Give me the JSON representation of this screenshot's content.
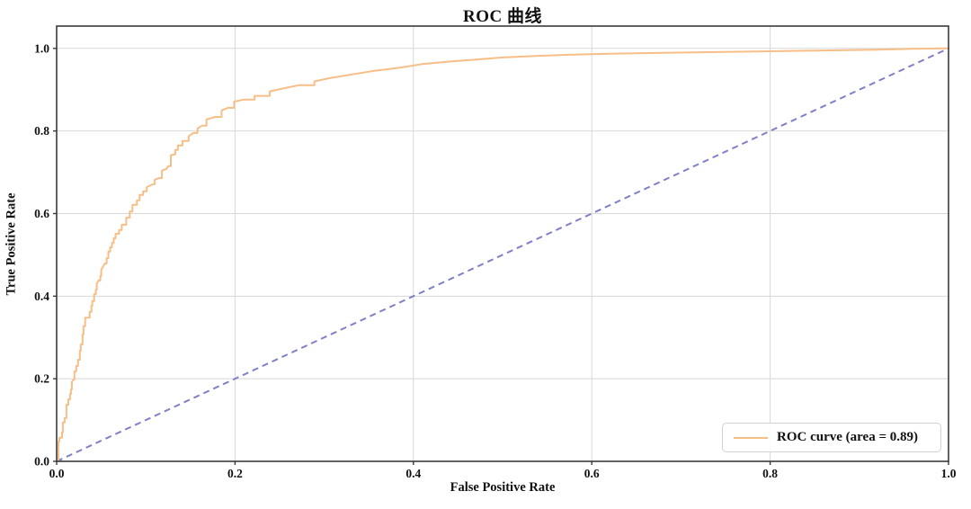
{
  "chart": {
    "title": "ROC 曲线",
    "xlabel": "False Positive Rate",
    "ylabel": "True Positive Rate",
    "legend": {
      "label": "ROC curve (area = 0.89)"
    }
  },
  "chart_data": {
    "type": "line",
    "title": "ROC 曲线",
    "xlabel": "False Positive Rate",
    "ylabel": "True Positive Rate",
    "xlim": [
      0,
      1.0
    ],
    "ylim": [
      0,
      1.054
    ],
    "x_ticks": [
      0,
      0.2,
      0.4,
      0.6,
      0.8,
      1.0
    ],
    "y_ticks": [
      0,
      0.2,
      0.4,
      0.6,
      0.8,
      1.0
    ],
    "x_tick_labels": [
      "0.0",
      "0.2",
      "0.4",
      "0.6",
      "0.8",
      "1.0"
    ],
    "y_tick_labels": [
      "0.0",
      "0.2",
      "0.4",
      "0.6",
      "0.8",
      "1.0"
    ],
    "grid": true,
    "legend_position": "lower right",
    "auc": 0.89,
    "colors": {
      "roc_curve": "#f7be87",
      "diagonal": "#7f80c8",
      "gridline": "#d8d8d8",
      "spine": "#3b3b3b",
      "text": "#111111",
      "background": "#ffffff",
      "legend_border": "#d2d2d2"
    },
    "series": [
      {
        "name": "ROC curve (area = 0.89)",
        "style": "solid",
        "step_rendering": true,
        "points": [
          [
            0.0,
            0.0
          ],
          [
            0.002,
            0.048
          ],
          [
            0.003,
            0.057
          ],
          [
            0.006,
            0.07
          ],
          [
            0.007,
            0.094
          ],
          [
            0.009,
            0.105
          ],
          [
            0.011,
            0.137
          ],
          [
            0.013,
            0.15
          ],
          [
            0.015,
            0.163
          ],
          [
            0.016,
            0.174
          ],
          [
            0.017,
            0.192
          ],
          [
            0.019,
            0.198
          ],
          [
            0.02,
            0.218
          ],
          [
            0.022,
            0.231
          ],
          [
            0.024,
            0.246
          ],
          [
            0.026,
            0.268
          ],
          [
            0.027,
            0.283
          ],
          [
            0.029,
            0.307
          ],
          [
            0.03,
            0.327
          ],
          [
            0.032,
            0.348
          ],
          [
            0.037,
            0.362
          ],
          [
            0.039,
            0.377
          ],
          [
            0.04,
            0.388
          ],
          [
            0.042,
            0.405
          ],
          [
            0.044,
            0.416
          ],
          [
            0.045,
            0.431
          ],
          [
            0.047,
            0.438
          ],
          [
            0.049,
            0.449
          ],
          [
            0.05,
            0.464
          ],
          [
            0.052,
            0.471
          ],
          [
            0.054,
            0.479
          ],
          [
            0.056,
            0.492
          ],
          [
            0.058,
            0.508
          ],
          [
            0.06,
            0.518
          ],
          [
            0.062,
            0.529
          ],
          [
            0.064,
            0.54
          ],
          [
            0.066,
            0.551
          ],
          [
            0.07,
            0.56
          ],
          [
            0.073,
            0.573
          ],
          [
            0.078,
            0.59
          ],
          [
            0.082,
            0.605
          ],
          [
            0.085,
            0.621
          ],
          [
            0.09,
            0.632
          ],
          [
            0.093,
            0.645
          ],
          [
            0.097,
            0.654
          ],
          [
            0.101,
            0.664
          ],
          [
            0.108,
            0.671
          ],
          [
            0.11,
            0.682
          ],
          [
            0.115,
            0.686
          ],
          [
            0.118,
            0.704
          ],
          [
            0.123,
            0.708
          ],
          [
            0.125,
            0.715
          ],
          [
            0.128,
            0.741
          ],
          [
            0.131,
            0.743
          ],
          [
            0.133,
            0.754
          ],
          [
            0.136,
            0.765
          ],
          [
            0.141,
            0.776
          ],
          [
            0.148,
            0.787
          ],
          [
            0.153,
            0.795
          ],
          [
            0.158,
            0.806
          ],
          [
            0.163,
            0.813
          ],
          [
            0.168,
            0.828
          ],
          [
            0.178,
            0.834
          ],
          [
            0.185,
            0.85
          ],
          [
            0.192,
            0.856
          ],
          [
            0.199,
            0.871
          ],
          [
            0.21,
            0.876
          ],
          [
            0.222,
            0.885
          ],
          [
            0.239,
            0.896
          ],
          [
            0.256,
            0.904
          ],
          [
            0.272,
            0.911
          ],
          [
            0.289,
            0.92
          ],
          [
            0.306,
            0.928
          ],
          [
            0.323,
            0.934
          ],
          [
            0.34,
            0.94
          ],
          [
            0.357,
            0.946
          ],
          [
            0.373,
            0.95
          ],
          [
            0.39,
            0.955
          ],
          [
            0.41,
            0.962
          ],
          [
            0.44,
            0.968
          ],
          [
            0.47,
            0.973
          ],
          [
            0.5,
            0.978
          ],
          [
            0.54,
            0.982
          ],
          [
            0.58,
            0.985
          ],
          [
            0.62,
            0.987
          ],
          [
            0.68,
            0.989
          ],
          [
            0.74,
            0.991
          ],
          [
            0.8,
            0.993
          ],
          [
            0.86,
            0.995
          ],
          [
            0.92,
            0.997
          ],
          [
            0.96,
            0.999
          ],
          [
            1.0,
            1.0
          ]
        ]
      },
      {
        "name": "chance-diagonal",
        "style": "dashed",
        "step_rendering": false,
        "points": [
          [
            0.0,
            0.0
          ],
          [
            1.0,
            1.0
          ]
        ]
      }
    ]
  }
}
